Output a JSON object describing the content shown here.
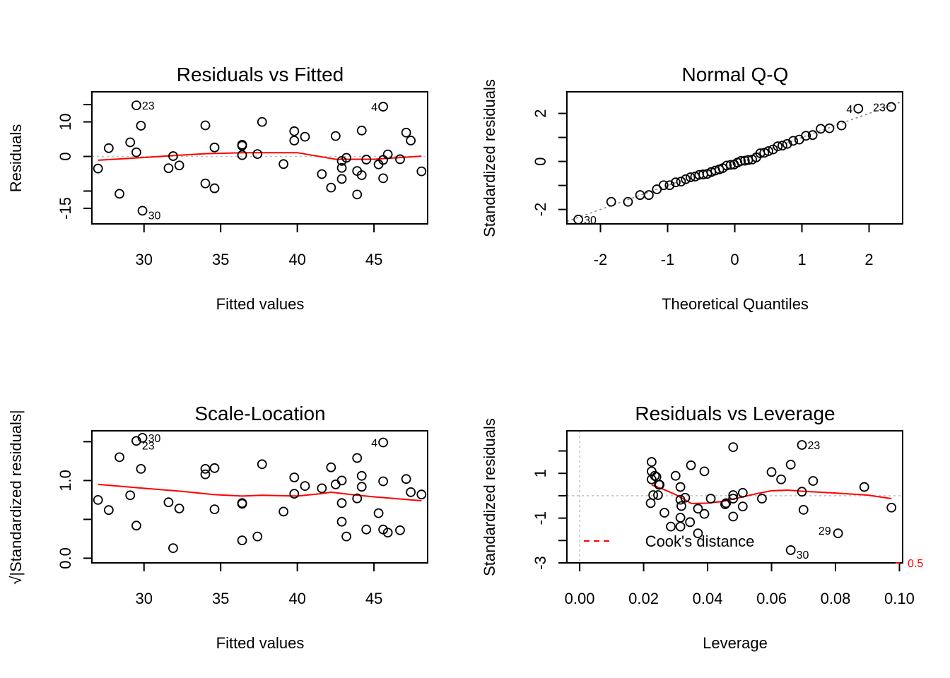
{
  "chart_data": [
    {
      "type": "scatter",
      "title": "Residuals vs Fitted",
      "xlabel": "Fitted values",
      "ylabel": "Residuals",
      "xlim": [
        26.6,
        48.5
      ],
      "ylim": [
        -19.5,
        18.7
      ],
      "xticks": [
        30,
        35,
        40,
        45
      ],
      "yticks": [
        -15,
        -10,
        0,
        10,
        15
      ],
      "ytick_labels": [
        "-15",
        "",
        "0",
        "10",
        ""
      ],
      "reference_line": {
        "y": 0,
        "style": "dotted",
        "color": "#bebebe"
      },
      "points": [
        {
          "x": 27.0,
          "y": -3.5
        },
        {
          "x": 27.7,
          "y": 2.4
        },
        {
          "x": 28.4,
          "y": -10.8
        },
        {
          "x": 29.1,
          "y": 4.1
        },
        {
          "x": 29.5,
          "y": 14.8,
          "label": "23"
        },
        {
          "x": 29.5,
          "y": 1.2
        },
        {
          "x": 29.8,
          "y": 8.9
        },
        {
          "x": 29.9,
          "y": -15.7,
          "label": "30"
        },
        {
          "x": 31.6,
          "y": -3.4
        },
        {
          "x": 31.9,
          "y": 0.1
        },
        {
          "x": 32.3,
          "y": -2.6
        },
        {
          "x": 34.0,
          "y": 9.0
        },
        {
          "x": 34.0,
          "y": -7.8
        },
        {
          "x": 34.6,
          "y": 2.6
        },
        {
          "x": 34.6,
          "y": -9.2
        },
        {
          "x": 36.4,
          "y": 3.1
        },
        {
          "x": 36.4,
          "y": 3.4
        },
        {
          "x": 36.4,
          "y": 0.4
        },
        {
          "x": 37.4,
          "y": 0.7
        },
        {
          "x": 37.7,
          "y": 10.0
        },
        {
          "x": 39.1,
          "y": -2.2
        },
        {
          "x": 39.8,
          "y": 7.3
        },
        {
          "x": 39.8,
          "y": 4.6
        },
        {
          "x": 40.5,
          "y": 5.7
        },
        {
          "x": 41.6,
          "y": -5.1
        },
        {
          "x": 42.2,
          "y": -9.0
        },
        {
          "x": 42.5,
          "y": 5.9
        },
        {
          "x": 42.9,
          "y": -1.3
        },
        {
          "x": 42.9,
          "y": -3.3
        },
        {
          "x": 42.9,
          "y": -6.5
        },
        {
          "x": 43.2,
          "y": -0.4
        },
        {
          "x": 43.9,
          "y": -11.0
        },
        {
          "x": 43.9,
          "y": -4.2
        },
        {
          "x": 44.2,
          "y": 7.5
        },
        {
          "x": 44.2,
          "y": -5.4
        },
        {
          "x": 44.5,
          "y": -0.9
        },
        {
          "x": 45.3,
          "y": -2.3
        },
        {
          "x": 45.6,
          "y": 14.4,
          "label": "4"
        },
        {
          "x": 45.6,
          "y": -1.0
        },
        {
          "x": 45.6,
          "y": -6.3
        },
        {
          "x": 45.9,
          "y": 0.6
        },
        {
          "x": 46.7,
          "y": -0.8
        },
        {
          "x": 47.1,
          "y": 6.9
        },
        {
          "x": 47.4,
          "y": 4.6
        },
        {
          "x": 48.1,
          "y": -4.3
        }
      ],
      "smooth": [
        {
          "x": 27.0,
          "y": -1.1
        },
        {
          "x": 30.0,
          "y": -0.3
        },
        {
          "x": 32.0,
          "y": 0.3
        },
        {
          "x": 34.0,
          "y": 0.8
        },
        {
          "x": 36.5,
          "y": 1.1
        },
        {
          "x": 40.0,
          "y": 1.1
        },
        {
          "x": 42.5,
          "y": -0.8
        },
        {
          "x": 45.0,
          "y": -0.8
        },
        {
          "x": 48.1,
          "y": 0.1
        }
      ]
    },
    {
      "type": "scatter",
      "title": "Normal Q-Q",
      "xlabel": "Theoretical Quantiles",
      "ylabel": "Standardized residuals",
      "xlim": [
        -2.5,
        2.5
      ],
      "ylim": [
        -2.6,
        2.9
      ],
      "xticks": [
        -2,
        -1,
        0,
        1,
        2
      ],
      "yticks": [
        -2,
        -1,
        0,
        1,
        2
      ],
      "ytick_labels": [
        "-2",
        "",
        "0",
        "",
        "2"
      ],
      "reference_line": {
        "slope": 1.0,
        "intercept": 0.0,
        "style": "dotted",
        "color": "#808080"
      },
      "points": [
        {
          "x": -2.33,
          "y": -2.42,
          "label": "30"
        },
        {
          "x": -1.84,
          "y": -1.68
        },
        {
          "x": -1.59,
          "y": -1.68
        },
        {
          "x": -1.41,
          "y": -1.4
        },
        {
          "x": -1.28,
          "y": -1.4
        },
        {
          "x": -1.16,
          "y": -1.16
        },
        {
          "x": -1.06,
          "y": -0.99
        },
        {
          "x": -0.97,
          "y": -0.99
        },
        {
          "x": -0.88,
          "y": -0.87
        },
        {
          "x": -0.8,
          "y": -0.84
        },
        {
          "x": -0.73,
          "y": -0.74
        },
        {
          "x": -0.66,
          "y": -0.66
        },
        {
          "x": -0.59,
          "y": -0.63
        },
        {
          "x": -0.53,
          "y": -0.56
        },
        {
          "x": -0.47,
          "y": -0.54
        },
        {
          "x": -0.41,
          "y": -0.52
        },
        {
          "x": -0.35,
          "y": -0.44
        },
        {
          "x": -0.29,
          "y": -0.38
        },
        {
          "x": -0.23,
          "y": -0.33
        },
        {
          "x": -0.18,
          "y": -0.28
        },
        {
          "x": -0.12,
          "y": -0.17
        },
        {
          "x": -0.06,
          "y": -0.14
        },
        {
          "x": -0.01,
          "y": -0.13
        },
        {
          "x": 0.04,
          "y": -0.05
        },
        {
          "x": 0.09,
          "y": 0.02
        },
        {
          "x": 0.15,
          "y": 0.03
        },
        {
          "x": 0.2,
          "y": 0.06
        },
        {
          "x": 0.26,
          "y": 0.08
        },
        {
          "x": 0.32,
          "y": 0.17
        },
        {
          "x": 0.38,
          "y": 0.34
        },
        {
          "x": 0.44,
          "y": 0.36
        },
        {
          "x": 0.5,
          "y": 0.43
        },
        {
          "x": 0.57,
          "y": 0.5
        },
        {
          "x": 0.64,
          "y": 0.63
        },
        {
          "x": 0.71,
          "y": 0.66
        },
        {
          "x": 0.78,
          "y": 0.73
        },
        {
          "x": 0.87,
          "y": 0.86
        },
        {
          "x": 0.96,
          "y": 0.91
        },
        {
          "x": 1.06,
          "y": 1.07
        },
        {
          "x": 1.16,
          "y": 1.1
        },
        {
          "x": 1.28,
          "y": 1.36
        },
        {
          "x": 1.41,
          "y": 1.38
        },
        {
          "x": 1.59,
          "y": 1.5
        },
        {
          "x": 1.84,
          "y": 2.2,
          "label": "4"
        },
        {
          "x": 2.33,
          "y": 2.27,
          "label": "23"
        }
      ]
    },
    {
      "type": "scatter",
      "title": "Scale-Location",
      "xlabel": "Fitted values",
      "ylabel": "√|Standardized residuals|",
      "xlim": [
        26.6,
        48.5
      ],
      "ylim": [
        -0.06,
        1.64
      ],
      "xticks": [
        30,
        35,
        40,
        45
      ],
      "yticks": [
        0.0,
        0.5,
        1.0,
        1.5
      ],
      "ytick_labels": [
        "0.0",
        "",
        "1.0",
        ""
      ],
      "points": [
        {
          "x": 27.0,
          "y": 0.75
        },
        {
          "x": 27.7,
          "y": 0.62
        },
        {
          "x": 28.4,
          "y": 1.3
        },
        {
          "x": 29.1,
          "y": 0.81
        },
        {
          "x": 29.5,
          "y": 1.51,
          "label": "23"
        },
        {
          "x": 29.5,
          "y": 0.42
        },
        {
          "x": 29.8,
          "y": 1.15
        },
        {
          "x": 29.9,
          "y": 1.55,
          "label": "30"
        },
        {
          "x": 31.6,
          "y": 0.72
        },
        {
          "x": 31.9,
          "y": 0.13
        },
        {
          "x": 32.3,
          "y": 0.64
        },
        {
          "x": 34.0,
          "y": 1.15
        },
        {
          "x": 34.0,
          "y": 1.08
        },
        {
          "x": 34.6,
          "y": 1.16
        },
        {
          "x": 34.6,
          "y": 0.63
        },
        {
          "x": 36.4,
          "y": 0.71
        },
        {
          "x": 36.4,
          "y": 0.7
        },
        {
          "x": 36.4,
          "y": 0.23
        },
        {
          "x": 37.4,
          "y": 0.28
        },
        {
          "x": 37.7,
          "y": 1.21
        },
        {
          "x": 39.1,
          "y": 0.6
        },
        {
          "x": 39.8,
          "y": 1.04
        },
        {
          "x": 39.8,
          "y": 0.83
        },
        {
          "x": 40.5,
          "y": 0.93
        },
        {
          "x": 41.6,
          "y": 0.9
        },
        {
          "x": 42.2,
          "y": 1.17
        },
        {
          "x": 42.5,
          "y": 0.95
        },
        {
          "x": 42.9,
          "y": 1.0
        },
        {
          "x": 42.9,
          "y": 0.71
        },
        {
          "x": 42.9,
          "y": 0.47
        },
        {
          "x": 43.2,
          "y": 0.28
        },
        {
          "x": 43.9,
          "y": 1.29
        },
        {
          "x": 43.9,
          "y": 0.77
        },
        {
          "x": 44.2,
          "y": 1.06
        },
        {
          "x": 44.2,
          "y": 0.92
        },
        {
          "x": 44.5,
          "y": 0.37
        },
        {
          "x": 45.3,
          "y": 0.58
        },
        {
          "x": 45.6,
          "y": 1.49,
          "label": "4"
        },
        {
          "x": 45.6,
          "y": 0.99
        },
        {
          "x": 45.6,
          "y": 0.37
        },
        {
          "x": 45.9,
          "y": 0.33
        },
        {
          "x": 46.7,
          "y": 0.36
        },
        {
          "x": 47.1,
          "y": 1.02
        },
        {
          "x": 47.4,
          "y": 0.85
        },
        {
          "x": 48.1,
          "y": 0.82
        }
      ],
      "smooth": [
        {
          "x": 27.0,
          "y": 0.95
        },
        {
          "x": 30.0,
          "y": 0.9
        },
        {
          "x": 32.5,
          "y": 0.86
        },
        {
          "x": 34.5,
          "y": 0.82
        },
        {
          "x": 36.4,
          "y": 0.8
        },
        {
          "x": 37.7,
          "y": 0.81
        },
        {
          "x": 40.0,
          "y": 0.8
        },
        {
          "x": 41.5,
          "y": 0.83
        },
        {
          "x": 42.2,
          "y": 0.85
        },
        {
          "x": 43.5,
          "y": 0.82
        },
        {
          "x": 45.0,
          "y": 0.79
        },
        {
          "x": 48.1,
          "y": 0.74
        }
      ]
    },
    {
      "type": "scatter",
      "title": "Residuals vs Leverage",
      "xlabel": "Leverage",
      "ylabel": "Standardized residuals",
      "xlim": [
        -0.004,
        0.101
      ],
      "ylim": [
        -3.0,
        2.9
      ],
      "xticks": [
        0.0,
        0.02,
        0.04,
        0.06,
        0.08,
        0.1
      ],
      "xtick_labels": [
        "0.00",
        "0.02",
        "0.04",
        "0.06",
        "0.08",
        "0.10"
      ],
      "yticks": [
        -3,
        -2,
        -1,
        0,
        1,
        2
      ],
      "ytick_labels": [
        "-3",
        "",
        "-1",
        "",
        "1",
        ""
      ],
      "reference_lines": [
        {
          "y": 0,
          "style": "dotted",
          "color": "#bebebe"
        },
        {
          "x": 0,
          "style": "dotted",
          "color": "#bebebe"
        }
      ],
      "legend": {
        "label": "Cook's distance",
        "style": "dashed",
        "color": "#ff0000",
        "placement": "bottom-left"
      },
      "cooks_contour_label": "0.5",
      "points": [
        {
          "x": 0.0225,
          "y": 1.51
        },
        {
          "x": 0.0225,
          "y": 1.09
        },
        {
          "x": 0.0225,
          "y": 0.73
        },
        {
          "x": 0.0222,
          "y": -0.33
        },
        {
          "x": 0.023,
          "y": 0.03
        },
        {
          "x": 0.0235,
          "y": 0.89
        },
        {
          "x": 0.024,
          "y": 0.84
        },
        {
          "x": 0.0248,
          "y": 0.49
        },
        {
          "x": 0.025,
          "y": 0.49
        },
        {
          "x": 0.0245,
          "y": 0.03
        },
        {
          "x": 0.0265,
          "y": -0.76
        },
        {
          "x": 0.0285,
          "y": -1.38
        },
        {
          "x": 0.03,
          "y": 0.89
        },
        {
          "x": 0.0315,
          "y": 0.39
        },
        {
          "x": 0.0315,
          "y": -0.18
        },
        {
          "x": 0.0318,
          "y": -0.46
        },
        {
          "x": 0.0315,
          "y": -0.98
        },
        {
          "x": 0.0315,
          "y": -1.38
        },
        {
          "x": 0.033,
          "y": -0.09
        },
        {
          "x": 0.0348,
          "y": 1.36
        },
        {
          "x": 0.0345,
          "y": -1.18
        },
        {
          "x": 0.037,
          "y": -0.58
        },
        {
          "x": 0.037,
          "y": -1.68
        },
        {
          "x": 0.039,
          "y": 1.09
        },
        {
          "x": 0.039,
          "y": -0.81
        },
        {
          "x": 0.041,
          "y": -0.13
        },
        {
          "x": 0.0455,
          "y": -0.38
        },
        {
          "x": 0.0458,
          "y": -0.33
        },
        {
          "x": 0.048,
          "y": 2.17
        },
        {
          "x": 0.048,
          "y": 0.03
        },
        {
          "x": 0.048,
          "y": -0.13
        },
        {
          "x": 0.048,
          "y": -0.93
        },
        {
          "x": 0.051,
          "y": 0.13
        },
        {
          "x": 0.051,
          "y": -0.48
        },
        {
          "x": 0.057,
          "y": -0.13
        },
        {
          "x": 0.06,
          "y": 1.06
        },
        {
          "x": 0.063,
          "y": 0.73
        },
        {
          "x": 0.066,
          "y": 1.39
        },
        {
          "x": 0.066,
          "y": -2.43,
          "label": "30"
        },
        {
          "x": 0.0695,
          "y": 2.27,
          "label": "23"
        },
        {
          "x": 0.0695,
          "y": 0.18
        },
        {
          "x": 0.07,
          "y": -0.63
        },
        {
          "x": 0.073,
          "y": 0.66
        },
        {
          "x": 0.0808,
          "y": -1.68,
          "label": "29"
        },
        {
          "x": 0.089,
          "y": 0.39
        },
        {
          "x": 0.0975,
          "y": -0.53
        }
      ],
      "smooth": [
        {
          "x": 0.0225,
          "y": 0.48
        },
        {
          "x": 0.026,
          "y": 0.3
        },
        {
          "x": 0.03,
          "y": 0.05
        },
        {
          "x": 0.035,
          "y": -0.35
        },
        {
          "x": 0.04,
          "y": -0.33
        },
        {
          "x": 0.045,
          "y": -0.25
        },
        {
          "x": 0.05,
          "y": -0.08
        },
        {
          "x": 0.055,
          "y": 0.08
        },
        {
          "x": 0.06,
          "y": 0.22
        },
        {
          "x": 0.065,
          "y": 0.25
        },
        {
          "x": 0.07,
          "y": 0.2
        },
        {
          "x": 0.08,
          "y": 0.12
        },
        {
          "x": 0.09,
          "y": 0.03
        },
        {
          "x": 0.0975,
          "y": -0.13
        }
      ]
    }
  ]
}
